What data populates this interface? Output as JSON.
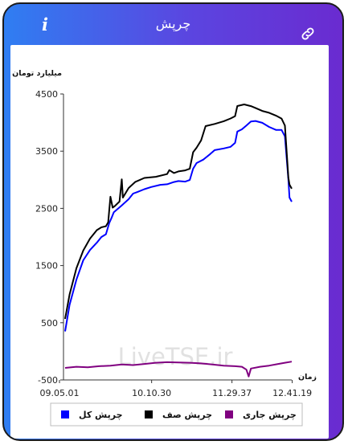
{
  "header": {
    "title": "چرپش",
    "info_icon": "i",
    "link_icon": "link-icon"
  },
  "watermark": "LiveTSE.ir",
  "chart_data": {
    "type": "line",
    "ylabel": "میلیارد تومان",
    "xlabel": "زمان",
    "y_ticks": [
      4500,
      3500,
      2500,
      1500,
      500,
      -500
    ],
    "ylim": [
      -500,
      4500
    ],
    "x_tick_labels": [
      "09.05.01",
      "10.10.30",
      "11.29.37",
      "12.41.19"
    ],
    "grid": false,
    "legend_position": "bottom",
    "series": [
      {
        "name": "چرپش کل",
        "color": "#0000ff",
        "points": [
          [
            0,
            360
          ],
          [
            0.02,
            820
          ],
          [
            0.05,
            1250
          ],
          [
            0.08,
            1580
          ],
          [
            0.11,
            1780
          ],
          [
            0.14,
            1900
          ],
          [
            0.16,
            1990
          ],
          [
            0.18,
            2060
          ],
          [
            0.195,
            2250
          ],
          [
            0.205,
            2330
          ],
          [
            0.215,
            2420
          ],
          [
            0.25,
            2560
          ],
          [
            0.28,
            2660
          ],
          [
            0.3,
            2750
          ],
          [
            0.32,
            2800
          ],
          [
            0.35,
            2840
          ],
          [
            0.38,
            2870
          ],
          [
            0.42,
            2900
          ],
          [
            0.45,
            2930
          ],
          [
            0.48,
            2960
          ],
          [
            0.5,
            2970
          ],
          [
            0.53,
            2980
          ],
          [
            0.55,
            3000
          ],
          [
            0.565,
            3190
          ],
          [
            0.58,
            3280
          ],
          [
            0.61,
            3360
          ],
          [
            0.64,
            3450
          ],
          [
            0.66,
            3510
          ],
          [
            0.7,
            3560
          ],
          [
            0.73,
            3580
          ],
          [
            0.75,
            3640
          ],
          [
            0.76,
            3830
          ],
          [
            0.78,
            3890
          ],
          [
            0.8,
            3950
          ],
          [
            0.82,
            4010
          ],
          [
            0.84,
            4040
          ],
          [
            0.87,
            4000
          ],
          [
            0.9,
            3920
          ],
          [
            0.93,
            3860
          ],
          [
            0.955,
            3880
          ],
          [
            0.97,
            3760
          ],
          [
            0.985,
            3000
          ],
          [
            0.99,
            2700
          ],
          [
            1,
            2620
          ]
        ]
      },
      {
        "name": "چرپش صف",
        "color": "#000000",
        "points": [
          [
            0,
            580
          ],
          [
            0.02,
            1000
          ],
          [
            0.05,
            1450
          ],
          [
            0.08,
            1750
          ],
          [
            0.11,
            1980
          ],
          [
            0.14,
            2120
          ],
          [
            0.16,
            2160
          ],
          [
            0.18,
            2200
          ],
          [
            0.19,
            2260
          ],
          [
            0.2,
            2700
          ],
          [
            0.21,
            2500
          ],
          [
            0.22,
            2550
          ],
          [
            0.24,
            2620
          ],
          [
            0.25,
            3000
          ],
          [
            0.255,
            2700
          ],
          [
            0.28,
            2860
          ],
          [
            0.31,
            2960
          ],
          [
            0.35,
            3020
          ],
          [
            0.4,
            3060
          ],
          [
            0.45,
            3100
          ],
          [
            0.46,
            3160
          ],
          [
            0.48,
            3130
          ],
          [
            0.5,
            3150
          ],
          [
            0.53,
            3160
          ],
          [
            0.55,
            3180
          ],
          [
            0.565,
            3490
          ],
          [
            0.58,
            3560
          ],
          [
            0.6,
            3680
          ],
          [
            0.62,
            3950
          ],
          [
            0.66,
            3980
          ],
          [
            0.7,
            4020
          ],
          [
            0.73,
            4060
          ],
          [
            0.75,
            4120
          ],
          [
            0.76,
            4290
          ],
          [
            0.79,
            4310
          ],
          [
            0.82,
            4300
          ],
          [
            0.84,
            4260
          ],
          [
            0.87,
            4200
          ],
          [
            0.9,
            4160
          ],
          [
            0.93,
            4130
          ],
          [
            0.955,
            4070
          ],
          [
            0.97,
            3940
          ],
          [
            0.985,
            3050
          ],
          [
            0.99,
            2920
          ],
          [
            1,
            2840
          ]
        ]
      },
      {
        "name": "چرپش جاری",
        "color": "#800080",
        "points": [
          [
            0,
            -290
          ],
          [
            0.05,
            -270
          ],
          [
            0.1,
            -280
          ],
          [
            0.15,
            -260
          ],
          [
            0.2,
            -250
          ],
          [
            0.25,
            -230
          ],
          [
            0.3,
            -240
          ],
          [
            0.35,
            -220
          ],
          [
            0.4,
            -200
          ],
          [
            0.45,
            -190
          ],
          [
            0.5,
            -195
          ],
          [
            0.55,
            -200
          ],
          [
            0.6,
            -210
          ],
          [
            0.65,
            -230
          ],
          [
            0.7,
            -250
          ],
          [
            0.75,
            -260
          ],
          [
            0.78,
            -270
          ],
          [
            0.8,
            -320
          ],
          [
            0.81,
            -440
          ],
          [
            0.82,
            -300
          ],
          [
            0.86,
            -270
          ],
          [
            0.9,
            -250
          ],
          [
            0.94,
            -220
          ],
          [
            0.97,
            -200
          ],
          [
            1,
            -180
          ]
        ]
      }
    ]
  }
}
